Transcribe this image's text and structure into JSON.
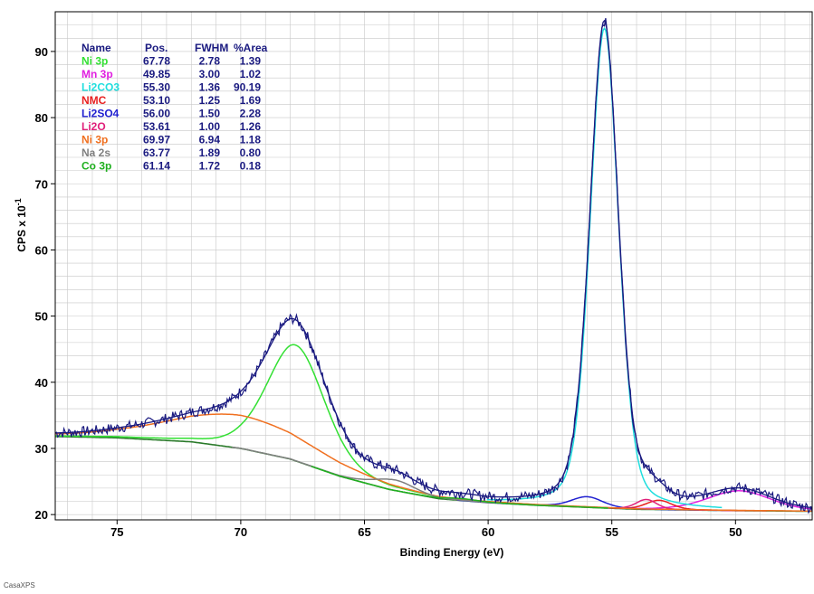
{
  "app": {
    "footer": "CasaXPS"
  },
  "chart_data": {
    "type": "line",
    "xlabel": "Binding Energy (eV)",
    "ylabel": "CPS x 10",
    "ylabel_exponent": "-1",
    "xlim": [
      77.5,
      46.9
    ],
    "ylim": [
      19.2,
      96.0
    ],
    "x_reversed": true,
    "grid": true,
    "x_ticks": [
      75,
      70,
      65,
      60,
      55,
      50
    ],
    "y_ticks": [
      20,
      30,
      40,
      50,
      60,
      70,
      80,
      90
    ],
    "legend_placement": "top-left",
    "colors": {
      "data": "#1a1a80",
      "envelope": "#1a1a80",
      "background": "#2a7a2a",
      "grid": "#c8c8c8"
    },
    "table": {
      "headers": [
        "Name",
        "Pos.",
        "FWHM",
        "%Area"
      ],
      "header_color": "#1a1a80",
      "value_color": "#1a1a80",
      "rows": [
        {
          "name": "Ni 3p",
          "pos": "67.78",
          "fwhm": "2.78",
          "area": "1.39",
          "color": "#33e033"
        },
        {
          "name": "Mn 3p",
          "pos": "49.85",
          "fwhm": "3.00",
          "area": "1.02",
          "color": "#e020e0"
        },
        {
          "name": "Li2CO3",
          "pos": "55.30",
          "fwhm": "1.36",
          "area": "90.19",
          "color": "#20dede"
        },
        {
          "name": "NMC",
          "pos": "53.10",
          "fwhm": "1.25",
          "area": "1.69",
          "color": "#e82020"
        },
        {
          "name": "Li2SO4",
          "pos": "56.00",
          "fwhm": "1.50",
          "area": "2.28",
          "color": "#2020d0"
        },
        {
          "name": "Li2O",
          "pos": "53.61",
          "fwhm": "1.00",
          "area": "1.26",
          "color": "#e0207a"
        },
        {
          "name": "Ni 3p",
          "pos": "69.97",
          "fwhm": "6.94",
          "area": "1.18",
          "color": "#f07020"
        },
        {
          "name": "Na 2s",
          "pos": "63.77",
          "fwhm": "1.89",
          "area": "0.80",
          "color": "#808080"
        },
        {
          "name": "Co 3p",
          "pos": "61.14",
          "fwhm": "1.72",
          "area": "0.18",
          "color": "#20b020"
        }
      ]
    },
    "components": [
      {
        "name": "Ni 3p",
        "center": 67.78,
        "fwhm": 2.78,
        "height": 17.5,
        "color": "#33e033"
      },
      {
        "name": "Mn 3p",
        "center": 49.85,
        "fwhm": 3.0,
        "height": 3.0,
        "color": "#e020e0"
      },
      {
        "name": "Li2CO3",
        "center": 55.3,
        "fwhm": 1.36,
        "height": 72.5,
        "color": "#20dede"
      },
      {
        "name": "NMC",
        "center": 53.1,
        "fwhm": 1.25,
        "height": 1.4,
        "color": "#e82020"
      },
      {
        "name": "Li2SO4",
        "center": 56.0,
        "fwhm": 1.5,
        "height": 1.6,
        "color": "#2020d0"
      },
      {
        "name": "Li2O",
        "center": 53.61,
        "fwhm": 1.0,
        "height": 1.5,
        "color": "#e0207a"
      },
      {
        "name": "Ni 3p",
        "center": 69.97,
        "fwhm": 6.94,
        "height": 5.0,
        "color": "#f07020"
      },
      {
        "name": "Na 2s",
        "center": 63.77,
        "fwhm": 1.89,
        "height": 1.6,
        "color": "#808080"
      },
      {
        "name": "Co 3p",
        "center": 61.14,
        "fwhm": 1.72,
        "height": 0.3,
        "color": "#20b020"
      }
    ],
    "background_points": [
      {
        "x": 77.5,
        "y": 31.8
      },
      {
        "x": 75.0,
        "y": 31.6
      },
      {
        "x": 72.0,
        "y": 31.0
      },
      {
        "x": 70.0,
        "y": 30.0
      },
      {
        "x": 68.0,
        "y": 28.4
      },
      {
        "x": 66.0,
        "y": 25.8
      },
      {
        "x": 64.0,
        "y": 23.8
      },
      {
        "x": 62.0,
        "y": 22.4
      },
      {
        "x": 60.0,
        "y": 21.8
      },
      {
        "x": 58.0,
        "y": 21.4
      },
      {
        "x": 56.0,
        "y": 21.1
      },
      {
        "x": 54.0,
        "y": 20.8
      },
      {
        "x": 52.0,
        "y": 20.7
      },
      {
        "x": 50.0,
        "y": 20.6
      },
      {
        "x": 47.0,
        "y": 20.5
      }
    ]
  }
}
